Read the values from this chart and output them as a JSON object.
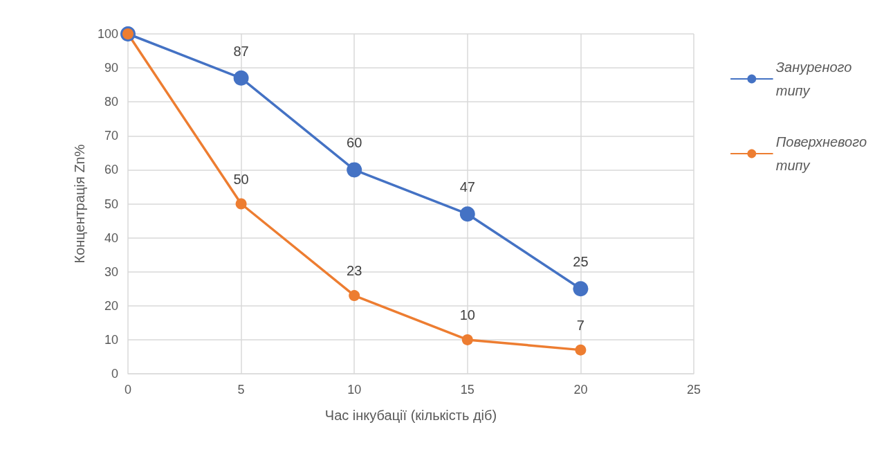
{
  "chart_data": {
    "type": "line",
    "xlabel": "Час інкубації (кількість діб)",
    "ylabel": "Концентрація Zn%",
    "x": [
      0,
      5,
      10,
      15,
      20
    ],
    "series": [
      {
        "name": "Зануреного типу",
        "color": "#4472c4",
        "values": [
          100,
          87,
          60,
          47,
          25
        ],
        "value_labels": [
          null,
          "87",
          "60",
          "47",
          "25"
        ]
      },
      {
        "name": "Поверхневого типу",
        "color": "#ed7d31",
        "values": [
          100,
          50,
          23,
          10,
          7
        ],
        "value_labels": [
          null,
          "50",
          "23",
          "10",
          "7"
        ]
      }
    ],
    "xlim": [
      0,
      25
    ],
    "xticks": [
      0,
      5,
      10,
      15,
      20,
      25
    ],
    "ylim": [
      0,
      100
    ],
    "yticks": [
      0,
      10,
      20,
      30,
      40,
      50,
      60,
      70,
      80,
      90,
      100
    ],
    "grid": true,
    "legend": "right",
    "marker": "circle",
    "line_style": "solid"
  }
}
